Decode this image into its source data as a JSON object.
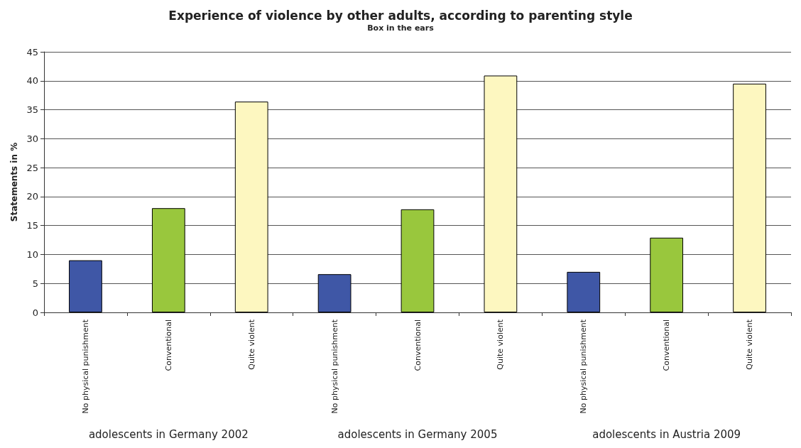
{
  "chart_data": {
    "type": "bar",
    "title": "Experience of violence by other adults, according to parenting style",
    "subtitle": "Box in the ears",
    "ylabel": "Statements in %",
    "categories": [
      "No physical punishment",
      "Conventional",
      "Quite violent",
      "No physical punishment",
      "Conventional",
      "Quite violent",
      "No physical punishment",
      "Conventional",
      "Quite violent"
    ],
    "values": [
      9.0,
      18.0,
      36.4,
      6.6,
      17.8,
      40.9,
      7.0,
      12.9,
      39.5
    ],
    "colors": [
      "#3f57a6",
      "#99c73d",
      "#fdf7c0",
      "#3f57a6",
      "#99c73d",
      "#fdf7c0",
      "#3f57a6",
      "#99c73d",
      "#fdf7c0"
    ],
    "ylim": [
      0,
      45
    ],
    "yticks": [
      0,
      5,
      10,
      15,
      20,
      25,
      30,
      35,
      40,
      45
    ],
    "grid": "y",
    "annotations": [
      "adolescents in Germany 2002",
      "adolescents in Germany 2005",
      "adolescents in Austria 2009"
    ]
  }
}
